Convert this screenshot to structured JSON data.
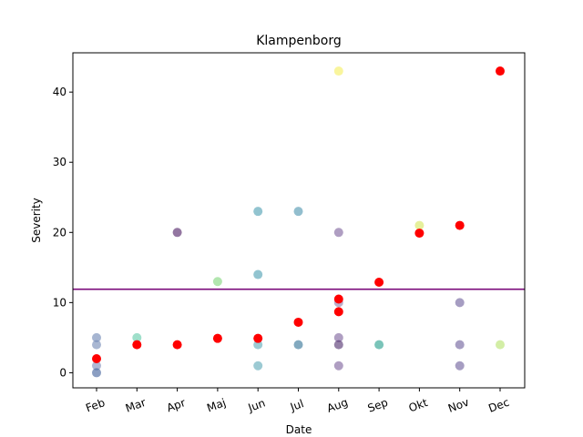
{
  "chart_data": {
    "type": "scatter",
    "title": "Klampenborg",
    "xlabel": "Date",
    "ylabel": "Severity",
    "categories": [
      "Feb",
      "Mar",
      "Apr",
      "Maj",
      "Jun",
      "Jul",
      "Aug",
      "Sep",
      "Okt",
      "Nov",
      "Dec"
    ],
    "ylim": [
      -2.15,
      45.6
    ],
    "yticks": [
      0,
      10,
      20,
      30,
      40
    ],
    "grid": false,
    "threshold": {
      "value": 11.9,
      "color": "#7b0a7b"
    },
    "series": [
      {
        "marker_color": "#ff0000",
        "points": [
          {
            "x": "Feb",
            "y": 2
          },
          {
            "x": "Mar",
            "y": 4
          },
          {
            "x": "Apr",
            "y": 4
          },
          {
            "x": "Maj",
            "y": 4.9
          },
          {
            "x": "Jun",
            "y": 4.9
          },
          {
            "x": "Jul",
            "y": 7.2
          },
          {
            "x": "Aug",
            "y": 8.7
          },
          {
            "x": "Aug",
            "y": 10.5
          },
          {
            "x": "Sep",
            "y": 12.9
          },
          {
            "x": "Okt",
            "y": 19.9
          },
          {
            "x": "Nov",
            "y": 21
          },
          {
            "x": "Dec",
            "y": 43
          }
        ]
      },
      {
        "points": [
          {
            "x": "Feb",
            "y": 5,
            "color": "#6a84b3"
          },
          {
            "x": "Feb",
            "y": 4,
            "color": "#6f87b4"
          },
          {
            "x": "Feb",
            "y": 1,
            "color": "#7b88b8"
          },
          {
            "x": "Feb",
            "y": 0,
            "color": "#3e5d99"
          },
          {
            "x": "Mar",
            "y": 5,
            "color": "#5fc9a7"
          },
          {
            "x": "Apr",
            "y": 20,
            "color": "#4b1a63"
          },
          {
            "x": "Maj",
            "y": 13,
            "color": "#7fd67a"
          },
          {
            "x": "Jun",
            "y": 23,
            "color": "#4a9cb0"
          },
          {
            "x": "Jun",
            "y": 14,
            "color": "#4a9cb0"
          },
          {
            "x": "Jun",
            "y": 4,
            "color": "#5aa6b6"
          },
          {
            "x": "Jun",
            "y": 1,
            "color": "#5aa6b6"
          },
          {
            "x": "Jul",
            "y": 23,
            "color": "#4a93ad"
          },
          {
            "x": "Jul",
            "y": 4,
            "color": "#2f6f95"
          },
          {
            "x": "Aug",
            "y": 43,
            "color": "#f5ee5c"
          },
          {
            "x": "Aug",
            "y": 20,
            "color": "#7a5e9a"
          },
          {
            "x": "Aug",
            "y": 10,
            "color": "#8e7aa8"
          },
          {
            "x": "Aug",
            "y": 5,
            "color": "#7a5e9a"
          },
          {
            "x": "Aug",
            "y": 4,
            "color": "#4d2c6b"
          },
          {
            "x": "Aug",
            "y": 1,
            "color": "#7a5e9a"
          },
          {
            "x": "Sep",
            "y": 4,
            "color": "#219d8a"
          },
          {
            "x": "Okt",
            "y": 21,
            "color": "#d6e65a"
          },
          {
            "x": "Nov",
            "y": 10,
            "color": "#6b5b9a"
          },
          {
            "x": "Nov",
            "y": 4,
            "color": "#6b5b9a"
          },
          {
            "x": "Nov",
            "y": 1,
            "color": "#6b5b9a"
          },
          {
            "x": "Dec",
            "y": 4,
            "color": "#b5e36a"
          }
        ]
      }
    ]
  }
}
